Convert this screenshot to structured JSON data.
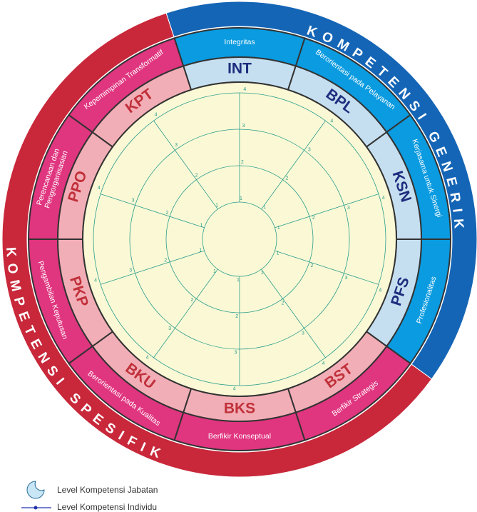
{
  "groups": [
    {
      "label": "KOMPETENSI GENERIK"
    },
    {
      "label": "KOMPETENSI SPESIFIK"
    }
  ],
  "sectors": [
    {
      "code": "INT",
      "name": [
        "Integritas"
      ]
    },
    {
      "code": "BPL",
      "name": [
        "Berorientasi pada Pelayanan"
      ]
    },
    {
      "code": "KSN",
      "name": [
        "Kerjasama untuk Sinergi"
      ]
    },
    {
      "code": "PFS",
      "name": [
        "Profesionalitas"
      ]
    },
    {
      "code": "BST",
      "name": [
        "Berfikir Strategis"
      ]
    },
    {
      "code": "BKS",
      "name": [
        "Berfikir Konseptual"
      ]
    },
    {
      "code": "BKU",
      "name": [
        "Berorientasi pada Kualitas"
      ]
    },
    {
      "code": "PKP",
      "name": [
        "Pengambilan Keputusan"
      ]
    },
    {
      "code": "PPO",
      "name": [
        "Perencanaan dan",
        "Pengorganisasian"
      ]
    },
    {
      "code": "KPT",
      "name": [
        "Kepemimpinan Transformatif"
      ]
    }
  ],
  "levels": [
    "1",
    "2",
    "3",
    "4"
  ],
  "legend": [
    {
      "label": "Level Kompetensi Jabatan"
    },
    {
      "label": "Level Kompetensi Individu"
    }
  ]
}
